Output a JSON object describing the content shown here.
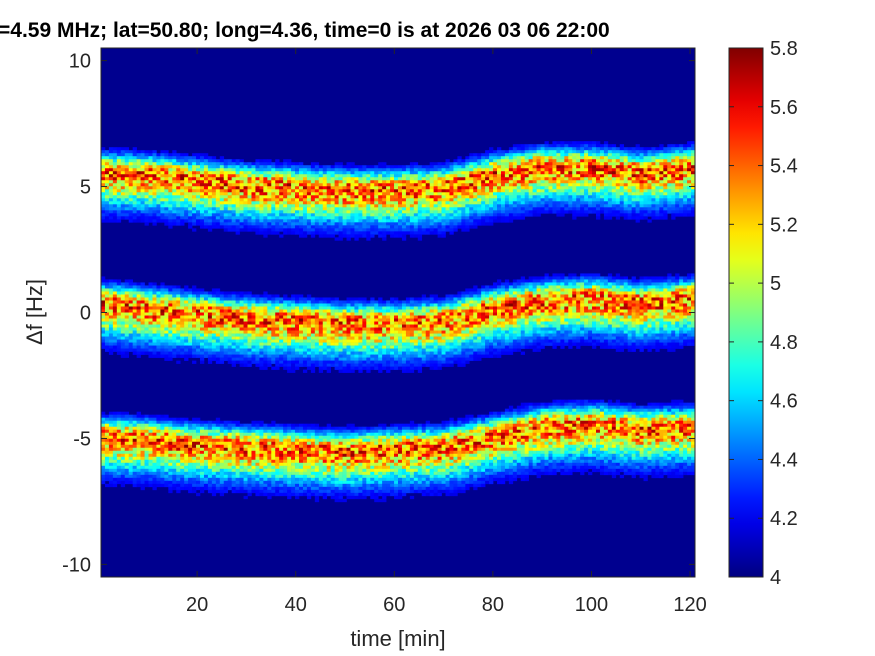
{
  "chart_data": {
    "type": "heatmap",
    "title": "=4.59 MHz;  lat=50.80; long=4.36, time=0 is at 2026 03 06 22:00",
    "xlabel": "time [min]",
    "ylabel": "Δf [Hz]",
    "xlim": [
      0.5,
      121
    ],
    "ylim": [
      -10.5,
      10.5
    ],
    "xticks": [
      20,
      40,
      60,
      80,
      100,
      120
    ],
    "xtick_labels": [
      "20",
      "40",
      "60",
      "80",
      "100",
      "120"
    ],
    "yticks": [
      10,
      5,
      0,
      -5,
      -10
    ],
    "ytick_labels": [
      "10",
      "5",
      "0",
      "-5",
      "-10"
    ],
    "colorbar": {
      "colormap": "jet",
      "range": [
        4,
        5.8
      ],
      "ticks": [
        5.8,
        5.6,
        5.4,
        5.2,
        5,
        4.8,
        4.6,
        4.4,
        4.2,
        4
      ],
      "tick_labels": [
        "5.8",
        "5.6",
        "5.4",
        "5.2",
        "5",
        "4.8",
        "4.6",
        "4.4",
        "4.2",
        "4"
      ]
    },
    "traces": [
      {
        "time": [
          0.5,
          10,
          20,
          30,
          40,
          50,
          60,
          70,
          80,
          90,
          100,
          110,
          121
        ],
        "df": [
          5.6,
          5.5,
          5.3,
          5.1,
          5.0,
          4.9,
          4.9,
          5.0,
          5.5,
          5.8,
          5.8,
          5.6,
          5.8
        ]
      },
      {
        "time": [
          0.5,
          10,
          20,
          30,
          40,
          50,
          60,
          70,
          80,
          90,
          100,
          110,
          121
        ],
        "df": [
          0.4,
          0.2,
          0.0,
          -0.2,
          -0.3,
          -0.4,
          -0.4,
          -0.3,
          0.2,
          0.5,
          0.6,
          0.4,
          0.6
        ]
      },
      {
        "time": [
          0.5,
          10,
          20,
          30,
          40,
          50,
          60,
          70,
          80,
          90,
          100,
          110,
          121
        ],
        "df": [
          -4.9,
          -5.0,
          -5.2,
          -5.3,
          -5.4,
          -5.5,
          -5.4,
          -5.3,
          -4.9,
          -4.5,
          -4.4,
          -4.6,
          -4.5
        ]
      }
    ],
    "background_level": 4.05
  }
}
